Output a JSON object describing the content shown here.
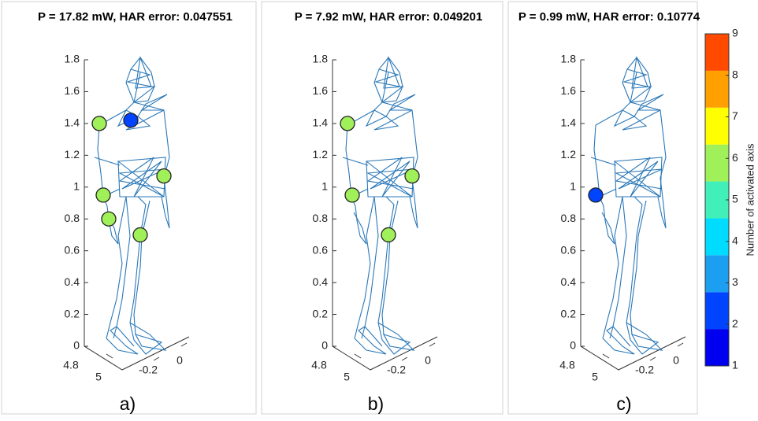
{
  "chart_data": [
    {
      "type": "scatter3d",
      "title": "P = 17.82 mW, HAR error: 0.047551",
      "panel_label": "a)",
      "zlim": [
        0,
        1.8
      ],
      "zticks": [
        0,
        0.2,
        0.4,
        0.6,
        0.8,
        1,
        1.2,
        1.4,
        1.6,
        1.8
      ],
      "xticks": [
        4.8,
        5
      ],
      "yticks": [
        -0.2,
        0
      ],
      "points": {
        "z": [
          1.4,
          1.42,
          0.95,
          0.8,
          1.07,
          0.7
        ],
        "level": [
          6,
          2,
          6,
          6,
          6,
          6
        ]
      }
    },
    {
      "type": "scatter3d",
      "title": "P = 7.92 mW, HAR error: 0.049201",
      "panel_label": "b)",
      "zlim": [
        0,
        1.8
      ],
      "zticks": [
        0,
        0.2,
        0.4,
        0.6,
        0.8,
        1,
        1.2,
        1.4,
        1.6,
        1.8
      ],
      "xticks": [
        4.8,
        5
      ],
      "yticks": [
        -0.2,
        0
      ],
      "points": {
        "z": [
          1.4,
          0.95,
          1.07,
          0.7
        ],
        "level": [
          6,
          6,
          6,
          6
        ]
      }
    },
    {
      "type": "scatter3d",
      "title": "P = 0.99 mW, HAR error: 0.10774",
      "panel_label": "c)",
      "zlim": [
        0,
        1.8
      ],
      "zticks": [
        0,
        0.2,
        0.4,
        0.6,
        0.8,
        1,
        1.2,
        1.4,
        1.6,
        1.8
      ],
      "xticks": [
        4.8,
        5
      ],
      "yticks": [
        -0.2,
        0
      ],
      "points": {
        "z": [
          0.95
        ],
        "level": [
          2
        ]
      }
    }
  ],
  "colorbar": {
    "label": "Number of activated axis",
    "lim": [
      1,
      9
    ],
    "ticks": [
      1,
      2,
      3,
      4,
      5,
      6,
      7,
      8,
      9
    ],
    "colors": [
      "#0000f0",
      "#0044ff",
      "#1c9ff0",
      "#00dcff",
      "#40f0b8",
      "#a0f05a",
      "#ffff00",
      "#ffa000",
      "#ff4a00"
    ]
  }
}
